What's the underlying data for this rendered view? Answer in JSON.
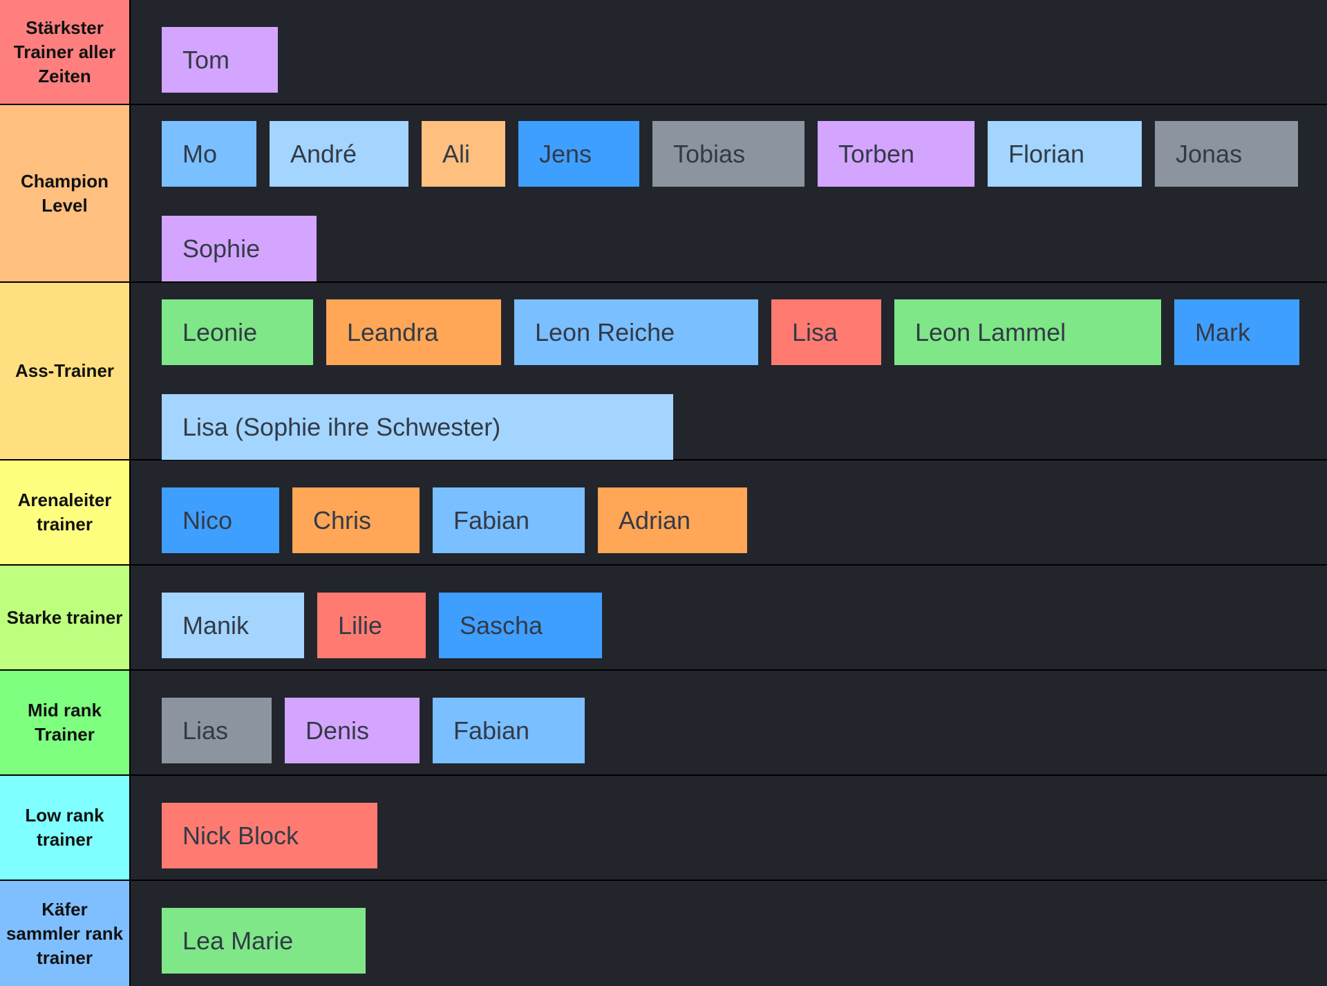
{
  "tiers": [
    {
      "label": "Stärkster Trainer aller Zeiten",
      "color": "#ff7f7f",
      "items": [
        "Tom"
      ]
    },
    {
      "label": "Champion Level",
      "color": "#ffbf7f",
      "items": [
        "Mo",
        "André",
        "Ali",
        "Jens",
        "Tobias",
        "Torben",
        "Florian",
        "Jonas",
        "Sophie"
      ]
    },
    {
      "label": "Ass-Trainer",
      "color": "#ffdf7f",
      "items": [
        "Leonie",
        "Leandra",
        "Leon Reiche",
        "Lisa",
        "Leon Lammel",
        "Mark",
        "Lisa (Sophie ihre Schwester)"
      ]
    },
    {
      "label": "Arenaleiter trainer",
      "color": "#ffff7f",
      "items": [
        "Nico",
        "Chris",
        "Fabian",
        "Adrian"
      ]
    },
    {
      "label": "Starke trainer",
      "color": "#bfff7f",
      "items": [
        "Manik",
        "Lilie",
        "Sascha"
      ]
    },
    {
      "label": "Mid rank Trainer",
      "color": "#7fff7f",
      "items": [
        "Lias",
        "Denis",
        "Fabian"
      ]
    },
    {
      "label": "Low rank trainer",
      "color": "#7fffff",
      "items": [
        "Nick Block"
      ]
    },
    {
      "label": "Käfer sammler rank trainer",
      "color": "#7fbfff",
      "items": [
        "Lea Marie"
      ]
    }
  ]
}
